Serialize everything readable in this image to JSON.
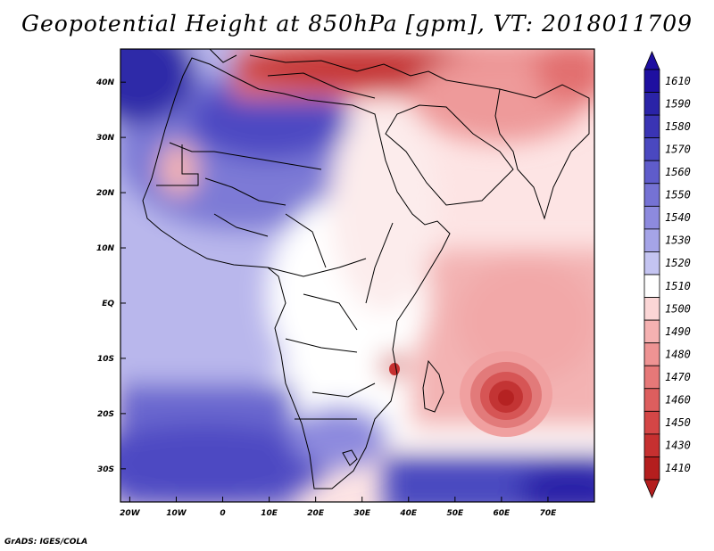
{
  "title": "Geopotential Height at 850hPa [gpm], VT: 2018011709",
  "credit": "GrADS: IGES/COLA",
  "map": {
    "lon_range": [
      -22,
      80
    ],
    "lat_range": [
      -36,
      46
    ],
    "lat_ticks": [
      {
        "value": 40,
        "label": "40N"
      },
      {
        "value": 30,
        "label": "30N"
      },
      {
        "value": 20,
        "label": "20N"
      },
      {
        "value": 10,
        "label": "10N"
      },
      {
        "value": 0,
        "label": "EQ"
      },
      {
        "value": -10,
        "label": "10S"
      },
      {
        "value": -20,
        "label": "20S"
      },
      {
        "value": -30,
        "label": "30S"
      }
    ],
    "lon_ticks": [
      {
        "value": -20,
        "label": "20W"
      },
      {
        "value": -10,
        "label": "10W"
      },
      {
        "value": 0,
        "label": "0"
      },
      {
        "value": 10,
        "label": "10E"
      },
      {
        "value": 20,
        "label": "20E"
      },
      {
        "value": 30,
        "label": "30E"
      },
      {
        "value": 40,
        "label": "40E"
      },
      {
        "value": 50,
        "label": "50E"
      },
      {
        "value": 60,
        "label": "60E"
      },
      {
        "value": 70,
        "label": "70E"
      }
    ]
  },
  "colorbar": {
    "levels": [
      {
        "label": "1610",
        "color": "#1e0fa0"
      },
      {
        "label": "1590",
        "color": "#2a23a8"
      },
      {
        "label": "1580",
        "color": "#3a34b4"
      },
      {
        "label": "1570",
        "color": "#4a48c0"
      },
      {
        "label": "1560",
        "color": "#5f5ccb"
      },
      {
        "label": "1550",
        "color": "#7572d4"
      },
      {
        "label": "1540",
        "color": "#8d8ade"
      },
      {
        "label": "1530",
        "color": "#a5a4e7"
      },
      {
        "label": "1520",
        "color": "#c4c4f1"
      },
      {
        "label": "1510",
        "color": "#ffffff"
      },
      {
        "label": "1500",
        "color": "#fbd6d6"
      },
      {
        "label": "1490",
        "color": "#f5b1b1"
      },
      {
        "label": "1480",
        "color": "#ee9393"
      },
      {
        "label": "1470",
        "color": "#e67878"
      },
      {
        "label": "1460",
        "color": "#dd5e5e"
      },
      {
        "label": "1450",
        "color": "#d44646"
      },
      {
        "label": "1430",
        "color": "#c63030"
      },
      {
        "label": "1410",
        "color": "#b41e1e"
      }
    ]
  }
}
